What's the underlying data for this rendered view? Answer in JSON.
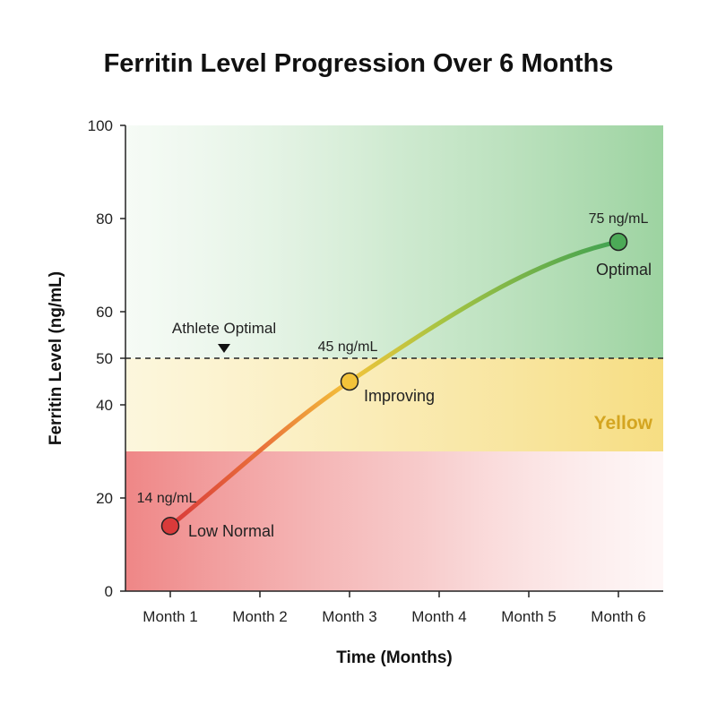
{
  "chart_data": {
    "type": "line",
    "title": "Ferritin Level Progression Over 6 Months",
    "xlabel": "Time (Months)",
    "ylabel": "Ferritin Level (ng/mL)",
    "categories": [
      "Month 1",
      "Month 2",
      "Month 3",
      "Month 4",
      "Month 5",
      "Month 6"
    ],
    "ylim": [
      0,
      100
    ],
    "yticks": [
      "0",
      "20",
      "40",
      "50",
      "60",
      "80",
      "100"
    ],
    "series": [
      {
        "x": [
          "Month 1",
          "Month 3",
          "Month 6"
        ],
        "values": [
          14,
          45,
          75
        ]
      }
    ],
    "points": [
      {
        "category": "Month 1",
        "value": 14,
        "value_label": "14 ng/mL",
        "status_label": "Low Normal",
        "color": "#d93a3a"
      },
      {
        "category": "Month 3",
        "value": 45,
        "value_label": "45 ng/mL",
        "status_label": "Improving",
        "color": "#f3c33a"
      },
      {
        "category": "Month 6",
        "value": 75,
        "value_label": "75 ng/mL",
        "status_label": "Optimal",
        "color": "#4caa57"
      }
    ],
    "bands": [
      {
        "from": 0,
        "to": 30,
        "color": "#ee8a8a",
        "label": ""
      },
      {
        "from": 30,
        "to": 50,
        "color": "#f7e08a",
        "label": "Yellow"
      },
      {
        "from": 50,
        "to": 100,
        "color": "#8fcf93",
        "label": ""
      }
    ],
    "reference_line": {
      "value": 50,
      "label": "Athlete Optimal"
    },
    "grid": false,
    "colors": {
      "low": "#d93a3a",
      "mid": "#f3c33a",
      "high": "#4caa57",
      "band_label": "#d4a520"
    }
  }
}
